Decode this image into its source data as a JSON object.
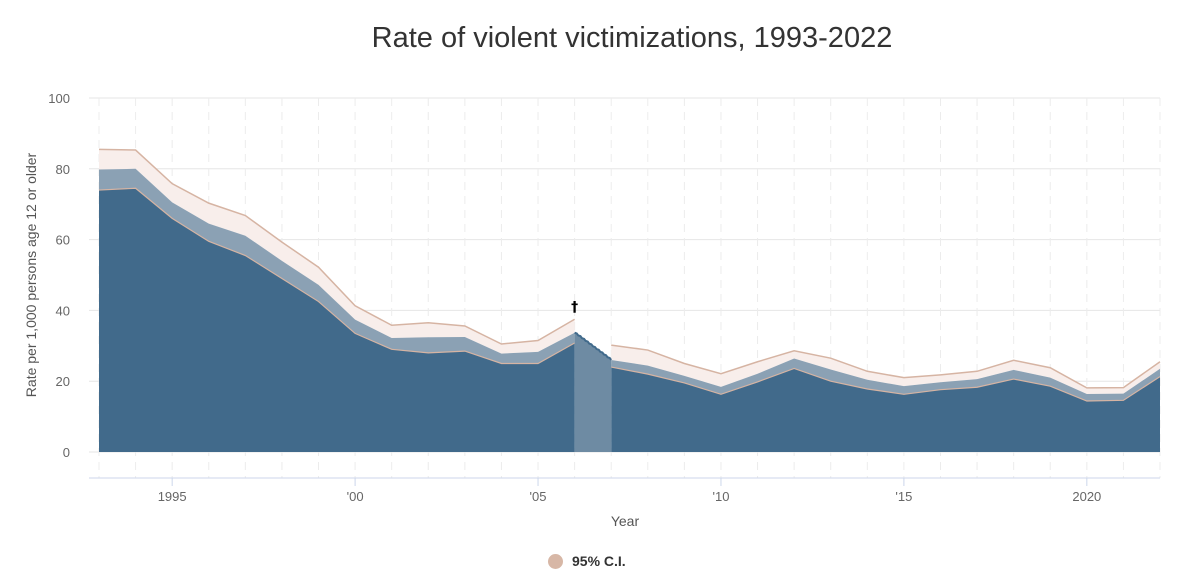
{
  "chart_data": {
    "type": "area",
    "title": "Rate of violent victimizations, 1993-2022",
    "xlabel": "Year",
    "ylabel": "Rate per 1,000 persons age 12 or older",
    "xlim": [
      1993,
      2022
    ],
    "ylim": [
      0,
      100
    ],
    "y_ticks": [
      0,
      20,
      40,
      60,
      80,
      100
    ],
    "x_ticks": [
      {
        "value": 1995,
        "label": "1995"
      },
      {
        "value": 2000,
        "label": "'00"
      },
      {
        "value": 2005,
        "label": "'05"
      },
      {
        "value": 2010,
        "label": "'10"
      },
      {
        "value": 2015,
        "label": "'15"
      },
      {
        "value": 2020,
        "label": "2020"
      }
    ],
    "grid": true,
    "legend_position": "bottom-center",
    "years": [
      1993,
      1994,
      1995,
      1996,
      1997,
      1998,
      1999,
      2000,
      2001,
      2002,
      2003,
      2004,
      2005,
      2006,
      2007,
      2008,
      2009,
      2010,
      2011,
      2012,
      2013,
      2014,
      2015,
      2016,
      2017,
      2018,
      2019,
      2020,
      2021,
      2022
    ],
    "series": [
      {
        "key": "rate",
        "values": [
          79.8,
          80.0,
          70.5,
          64.5,
          61.1,
          54.0,
          47.2,
          37.4,
          32.2,
          32.4,
          32.5,
          27.8,
          28.3,
          33.7,
          26.0,
          24.4,
          21.5,
          18.4,
          22.1,
          26.4,
          23.3,
          20.4,
          18.6,
          19.7,
          20.6,
          23.2,
          21.0,
          16.4,
          16.5,
          23.5
        ]
      },
      {
        "key": "ci_lower",
        "values": [
          74.0,
          74.5,
          66.0,
          59.5,
          55.5,
          49.0,
          42.5,
          33.5,
          29.0,
          28.0,
          28.5,
          25.0,
          25.0,
          30.8,
          24.0,
          22.0,
          19.5,
          16.3,
          19.8,
          23.6,
          20.0,
          17.8,
          16.3,
          17.6,
          18.3,
          20.6,
          18.6,
          14.4,
          14.6,
          21.3
        ]
      },
      {
        "key": "ci_upper",
        "values": [
          85.5,
          85.3,
          75.8,
          70.3,
          66.8,
          59.3,
          52.2,
          41.3,
          35.8,
          36.5,
          35.6,
          30.5,
          31.5,
          37.5,
          30.2,
          28.8,
          25.0,
          22.1,
          25.5,
          28.6,
          26.5,
          22.8,
          21.0,
          21.8,
          22.8,
          25.9,
          23.8,
          18.1,
          18.2,
          25.5
        ]
      }
    ],
    "marker": {
      "year": 2006,
      "symbol": "†"
    },
    "colors": {
      "rate": "#416a8b",
      "ci_band_inner": "#8ba1b4",
      "ci_band_outer": "#f8eeeb",
      "ci_border": "#d6b4a3",
      "highlight_year": "#6e8ba3",
      "grid": "#e6e6e6",
      "legend_dot": "#d7b7a6"
    }
  },
  "legend": {
    "label": "95% C.I.",
    "color": "#d7b7a6"
  }
}
